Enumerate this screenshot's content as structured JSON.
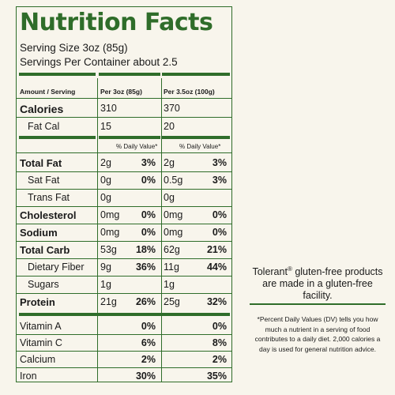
{
  "title": "Nutrition Facts",
  "serving_size": "Serving Size 3oz (85g)",
  "servings_per_container": "Servings Per Container about 2.5",
  "headers": {
    "amount": "Amount / Serving",
    "col1": "Per 3oz (85g)",
    "col2": "Per 3.5oz (100g)",
    "daily_value": "% Daily Value*"
  },
  "calories": {
    "label": "Calories",
    "col1": "310",
    "col2": "370"
  },
  "fat_cal": {
    "label": "Fat Cal",
    "col1": "15",
    "col2": "20"
  },
  "nutrients": [
    {
      "label": "Total Fat",
      "c1": "2g",
      "p1": "3%",
      "c2": "2g",
      "p2": "3%"
    },
    {
      "label": "Sat Fat",
      "c1": "0g",
      "p1": "0%",
      "c2": "0.5g",
      "p2": "3%"
    },
    {
      "label": "Trans Fat",
      "c1": "0g",
      "p1": "",
      "c2": "0g",
      "p2": ""
    },
    {
      "label": "Cholesterol",
      "c1": "0mg",
      "p1": "0%",
      "c2": "0mg",
      "p2": "0%"
    },
    {
      "label": "Sodium",
      "c1": "0mg",
      "p1": "0%",
      "c2": "0mg",
      "p2": "0%"
    },
    {
      "label": "Total Carb",
      "c1": "53g",
      "p1": "18%",
      "c2": "62g",
      "p2": "21%"
    },
    {
      "label": "Dietary Fiber",
      "c1": "9g",
      "p1": "36%",
      "c2": "11g",
      "p2": "44%"
    },
    {
      "label": "Sugars",
      "c1": "1g",
      "p1": "",
      "c2": "1g",
      "p2": ""
    },
    {
      "label": "Protein",
      "c1": "21g",
      "p1": "26%",
      "c2": "25g",
      "p2": "32%"
    }
  ],
  "vitamins": [
    {
      "label": "Vitamin A",
      "p1": "0%",
      "p2": "0%"
    },
    {
      "label": "Vitamin C",
      "p1": "6%",
      "p2": "8%"
    },
    {
      "label": "Calcium",
      "p1": "2%",
      "p2": "2%"
    },
    {
      "label": "Iron",
      "p1": "30%",
      "p2": "35%"
    }
  ],
  "side": {
    "brand": "Tolerant",
    "registered": "®",
    "note": " gluten-free products are made in a gluten-free facility.",
    "footnote": "*Percent Daily Values (DV) tells you how much a nutrient in a serving of food contributes to a daily diet. 2,000 calories a day is used for general nutrition advice."
  },
  "colors": {
    "accent": "#2f6d2a",
    "background": "#f8f5ec",
    "text": "#1a1a1a"
  }
}
